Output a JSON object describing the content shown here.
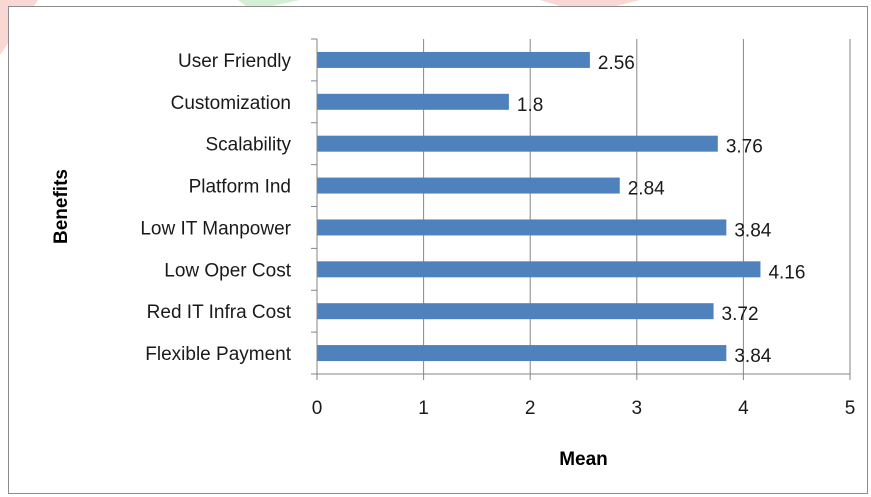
{
  "chart_data": {
    "type": "bar",
    "orientation": "horizontal",
    "categories": [
      "User Friendly",
      "Customization",
      "Scalability",
      "Platform Ind",
      "Low IT Manpower",
      "Low Oper Cost",
      "Red IT Infra Cost",
      "Flexible Payment"
    ],
    "values": [
      2.56,
      1.8,
      3.76,
      2.84,
      3.84,
      4.16,
      3.72,
      3.84
    ],
    "value_labels": [
      "2.56",
      "1.8",
      "3.76",
      "2.84",
      "3.84",
      "4.16",
      "3.72",
      "3.84"
    ],
    "xlabel": "Mean",
    "ylabel": "Benefits",
    "xlim": [
      0,
      5
    ],
    "xticks": [
      "0",
      "1",
      "2",
      "3",
      "4",
      "5"
    ],
    "grid": "vertical",
    "legend": "none",
    "bar_color": "#4f81bd",
    "gridline_color": "#868686"
  },
  "decor": {
    "accent_colors": [
      "#f9d7d2",
      "#d3f0d5"
    ]
  }
}
